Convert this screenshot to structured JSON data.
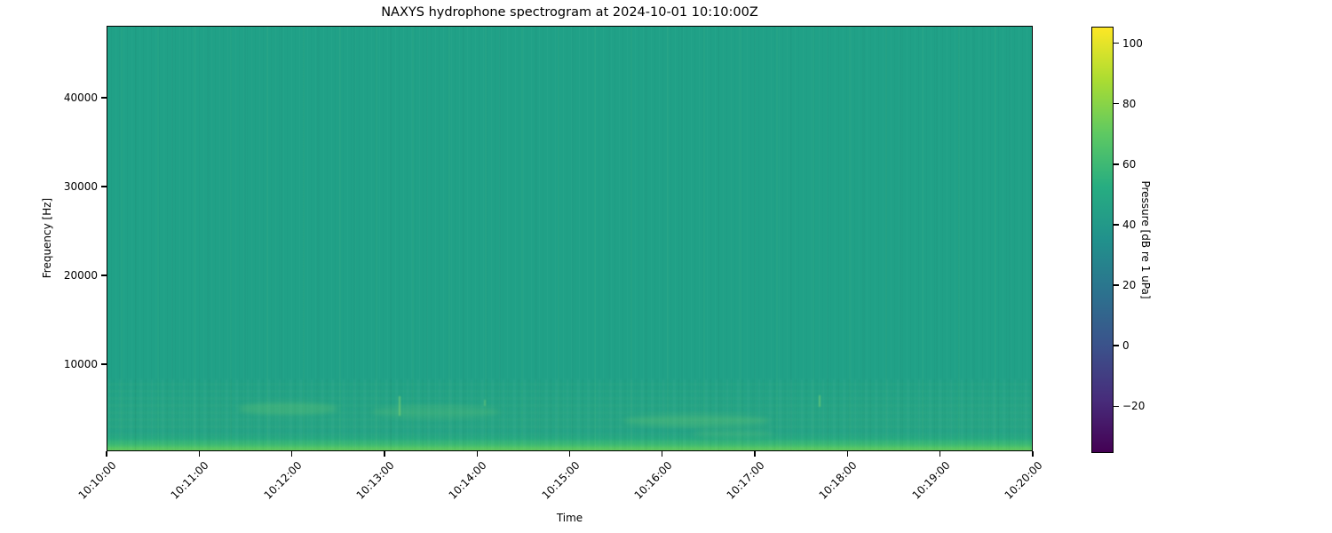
{
  "figure": {
    "title": "NAXYS hydrophone spectrogram at 2024-10-01 10:10:00Z"
  },
  "chart_data": {
    "type": "heatmap",
    "title": "NAXYS hydrophone spectrogram at 2024-10-01 10:10:00Z",
    "xlabel": "Time",
    "ylabel": "Frequency [Hz]",
    "colormap": "viridis",
    "grid": false,
    "x_axis": {
      "start": "10:10:00",
      "end": "10:20:00",
      "duration_s": 600,
      "tick_interval_s": 60,
      "tick_labels": [
        "10:10:00",
        "10:11:00",
        "10:12:00",
        "10:13:00",
        "10:14:00",
        "10:15:00",
        "10:16:00",
        "10:17:00",
        "10:18:00",
        "10:19:00",
        "10:20:00"
      ],
      "tick_rotation_deg": 45
    },
    "y_axis": {
      "min_hz": 200,
      "max_hz": 48100,
      "tick_values": [
        10000,
        20000,
        30000,
        40000
      ],
      "tick_labels": [
        "10000",
        "20000",
        "30000",
        "40000"
      ]
    },
    "colorbar": {
      "label": "Pressure [dB re 1 uPa]",
      "min": -35.5,
      "max": 105.5,
      "tick_values": [
        100,
        80,
        60,
        40,
        20,
        0,
        -20
      ],
      "tick_labels": [
        "100",
        "80",
        "60",
        "40",
        "20",
        "0",
        "−20"
      ],
      "stops": [
        "#440154",
        "#472d7b",
        "#3b528b",
        "#2c728e",
        "#21918c",
        "#27ad81",
        "#5ec962",
        "#aadc32",
        "#fde725"
      ]
    },
    "content": {
      "background_level_db": 54,
      "low_freq_band": {
        "below_hz": 1600,
        "peak_level_db": 76
      },
      "wisps": [
        {
          "t0_s": 85,
          "t1_s": 150,
          "f0_hz": 4300,
          "f1_hz": 5700,
          "alpha": 0.2
        },
        {
          "t0_s": 172,
          "t1_s": 255,
          "f0_hz": 3900,
          "f1_hz": 5400,
          "alpha": 0.14
        },
        {
          "t0_s": 335,
          "t1_s": 430,
          "f0_hz": 3000,
          "f1_hz": 4300,
          "alpha": 0.2
        },
        {
          "t0_s": 380,
          "t1_s": 432,
          "f0_hz": 1800,
          "f1_hz": 2600,
          "alpha": 0.16
        }
      ],
      "clicks": [
        {
          "t_s": 190,
          "f0_hz": 4200,
          "f1_hz": 6400,
          "alpha": 0.45
        },
        {
          "t_s": 245,
          "f0_hz": 5300,
          "f1_hz": 6000,
          "alpha": 0.3
        },
        {
          "t_s": 462,
          "f0_hz": 5200,
          "f1_hz": 6500,
          "alpha": 0.4
        }
      ]
    }
  },
  "colors": {
    "figure_bg": "#ffffff",
    "axes_fg": "#000000",
    "base": "#20a187",
    "band1": "#27ab80",
    "band2": "#3cba74",
    "band3": "#52c567",
    "band4": "#62ca5e",
    "wisp_rgb": "146,222,102",
    "click_rgb": "168,232,108"
  }
}
